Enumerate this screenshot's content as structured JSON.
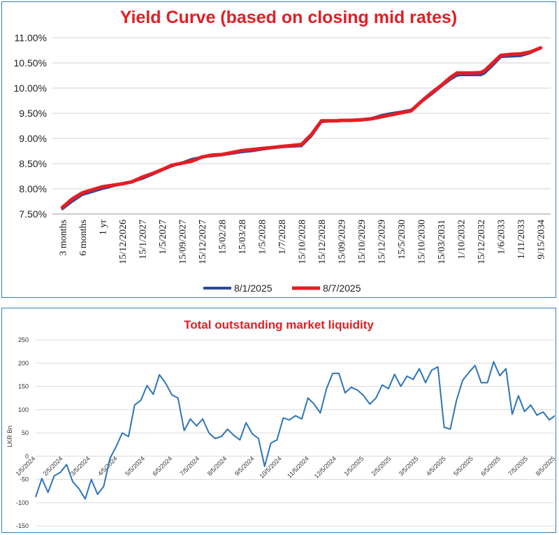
{
  "chart_data": [
    {
      "type": "line",
      "title": "Yield Curve (based on closing mid rates)",
      "xlabel": "",
      "ylabel": "",
      "ylim": [
        7.5,
        11.0
      ],
      "y_tick_labels": [
        "7.50%",
        "8.00%",
        "8.50%",
        "9.00%",
        "9.50%",
        "10.00%",
        "10.50%",
        "11.00%"
      ],
      "grid": "horizontal",
      "legend": "bottom",
      "categories": [
        "3 months",
        "6 months",
        "1 yr",
        "15/12/2026",
        "15/1/2027",
        "1/5/2027",
        "15/09/2027",
        "15/12/2027",
        "15/02/28",
        "15/03/28",
        "1/5/2028",
        "1/7/2028",
        "15/10/2028",
        "15/12/2028",
        "15/09/2029",
        "15/10/2029",
        "15/12/2029",
        "15/5/2030",
        "15/10/2030",
        "15/03/2031",
        "1/10/2032",
        "15/12/2032",
        "1/6/2033",
        "1/11/2033",
        "9/15/2034"
      ],
      "series": [
        {
          "name": "8/1/2025",
          "color": "#2b4a9b",
          "x": [
            0,
            0.5,
            1,
            1.5,
            2,
            2.5,
            3,
            3.5,
            4,
            4.5,
            5,
            5.5,
            6,
            6.5,
            7,
            7.5,
            8,
            8.5,
            9,
            9.5,
            10,
            10.5,
            11,
            11.5,
            12,
            12.5,
            13,
            13.4,
            13.8,
            14,
            14.5,
            15,
            15.5,
            16,
            16.5,
            17,
            17.5,
            18,
            18.5,
            19,
            19.5,
            19.8,
            20,
            20.5,
            21,
            21.2,
            21.6,
            22,
            22.5,
            23,
            23.5,
            24
          ],
          "values": [
            7.6,
            7.75,
            7.88,
            7.94,
            8.0,
            8.05,
            8.1,
            8.14,
            8.2,
            8.28,
            8.37,
            8.45,
            8.52,
            8.59,
            8.63,
            8.65,
            8.67,
            8.7,
            8.73,
            8.75,
            8.78,
            8.81,
            8.83,
            8.84,
            8.85,
            9.05,
            9.33,
            9.34,
            9.35,
            9.36,
            9.37,
            9.38,
            9.4,
            9.46,
            9.5,
            9.53,
            9.57,
            9.72,
            9.87,
            10.03,
            10.18,
            10.25,
            10.26,
            10.26,
            10.26,
            10.3,
            10.45,
            10.62,
            10.63,
            10.64,
            10.7,
            10.8
          ]
        },
        {
          "name": "8/7/2025",
          "color": "#e31e24",
          "x": [
            0,
            0.5,
            1,
            1.5,
            2,
            2.5,
            3,
            3.5,
            4,
            4.5,
            5,
            5.5,
            6,
            6.5,
            7,
            7.5,
            8,
            8.5,
            9,
            9.5,
            10,
            10.5,
            11,
            11.5,
            12,
            12.5,
            13,
            13.4,
            13.8,
            14,
            14.5,
            15,
            15.5,
            16,
            16.5,
            17,
            17.5,
            18,
            18.5,
            19,
            19.5,
            19.8,
            20,
            20.5,
            21,
            21.2,
            21.6,
            22,
            22.5,
            23,
            23.5,
            24
          ],
          "values": [
            7.63,
            7.8,
            7.92,
            7.98,
            8.04,
            8.07,
            8.1,
            8.14,
            8.23,
            8.3,
            8.38,
            8.47,
            8.51,
            8.55,
            8.63,
            8.67,
            8.68,
            8.72,
            8.76,
            8.78,
            8.8,
            8.82,
            8.84,
            8.86,
            8.88,
            9.08,
            9.35,
            9.35,
            9.35,
            9.36,
            9.36,
            9.37,
            9.39,
            9.43,
            9.47,
            9.51,
            9.55,
            9.73,
            9.9,
            10.05,
            10.22,
            10.3,
            10.3,
            10.3,
            10.31,
            10.35,
            10.5,
            10.65,
            10.67,
            10.68,
            10.72,
            10.8
          ]
        }
      ]
    },
    {
      "type": "line",
      "title": "Total outstanding market liquidity",
      "xlabel": "",
      "ylabel": "LKR Bn",
      "ylim": [
        -150,
        250
      ],
      "y_ticks": [
        "250",
        "200",
        "150",
        "100",
        "50",
        "0",
        "-50",
        "-100",
        "-150"
      ],
      "grid": "horizontal",
      "legend": "none",
      "x_tick_labels": [
        "1/5/2024",
        "2/5/2024",
        "3/5/2024",
        "4/5/2024",
        "5/5/2024",
        "6/5/2024",
        "7/5/2024",
        "8/5/2024",
        "9/5/2024",
        "10/5/2024",
        "11/5/2024",
        "12/5/2024",
        "1/5/2025",
        "2/5/2025",
        "3/5/2025",
        "4/5/2025",
        "5/5/2025",
        "6/5/2025",
        "7/5/2025",
        "8/5/2025"
      ],
      "series": [
        {
          "color": "#2e75b6",
          "values": [
            -88,
            -48,
            -78,
            -42,
            -35,
            -18,
            -55,
            -70,
            -92,
            -50,
            -82,
            -65,
            -5,
            20,
            50,
            42,
            110,
            120,
            152,
            133,
            175,
            157,
            132,
            125,
            55,
            80,
            65,
            80,
            50,
            38,
            42,
            58,
            45,
            35,
            72,
            48,
            38,
            -22,
            28,
            35,
            82,
            78,
            87,
            80,
            125,
            112,
            93,
            145,
            178,
            178,
            136,
            148,
            142,
            130,
            112,
            125,
            153,
            145,
            176,
            150,
            172,
            165,
            188,
            158,
            185,
            192,
            62,
            58,
            120,
            163,
            180,
            195,
            158,
            158,
            203,
            173,
            188,
            90,
            130,
            96,
            110,
            88,
            95,
            78,
            88
          ]
        }
      ]
    }
  ]
}
